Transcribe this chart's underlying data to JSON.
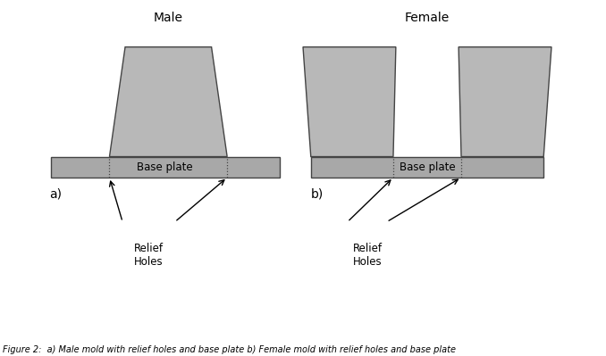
{
  "bg_color": "#ffffff",
  "mold_fill": "#b8b8b8",
  "mold_edge": "#444444",
  "plate_fill": "#a8a8a8",
  "plate_edge": "#444444",
  "title_male": "Male",
  "title_female": "Female",
  "label_a": "a)",
  "label_b": "b)",
  "base_plate_label": "Base plate",
  "relief_holes_label": "Relief\nHoles",
  "caption": "Figure 2:  a) Male mold with relief holes and base plate b) Female mold with relief holes and base plate",
  "caption_fontsize": 7.0,
  "title_fontsize": 10,
  "label_fontsize": 10,
  "baseplate_fontsize": 8.5
}
